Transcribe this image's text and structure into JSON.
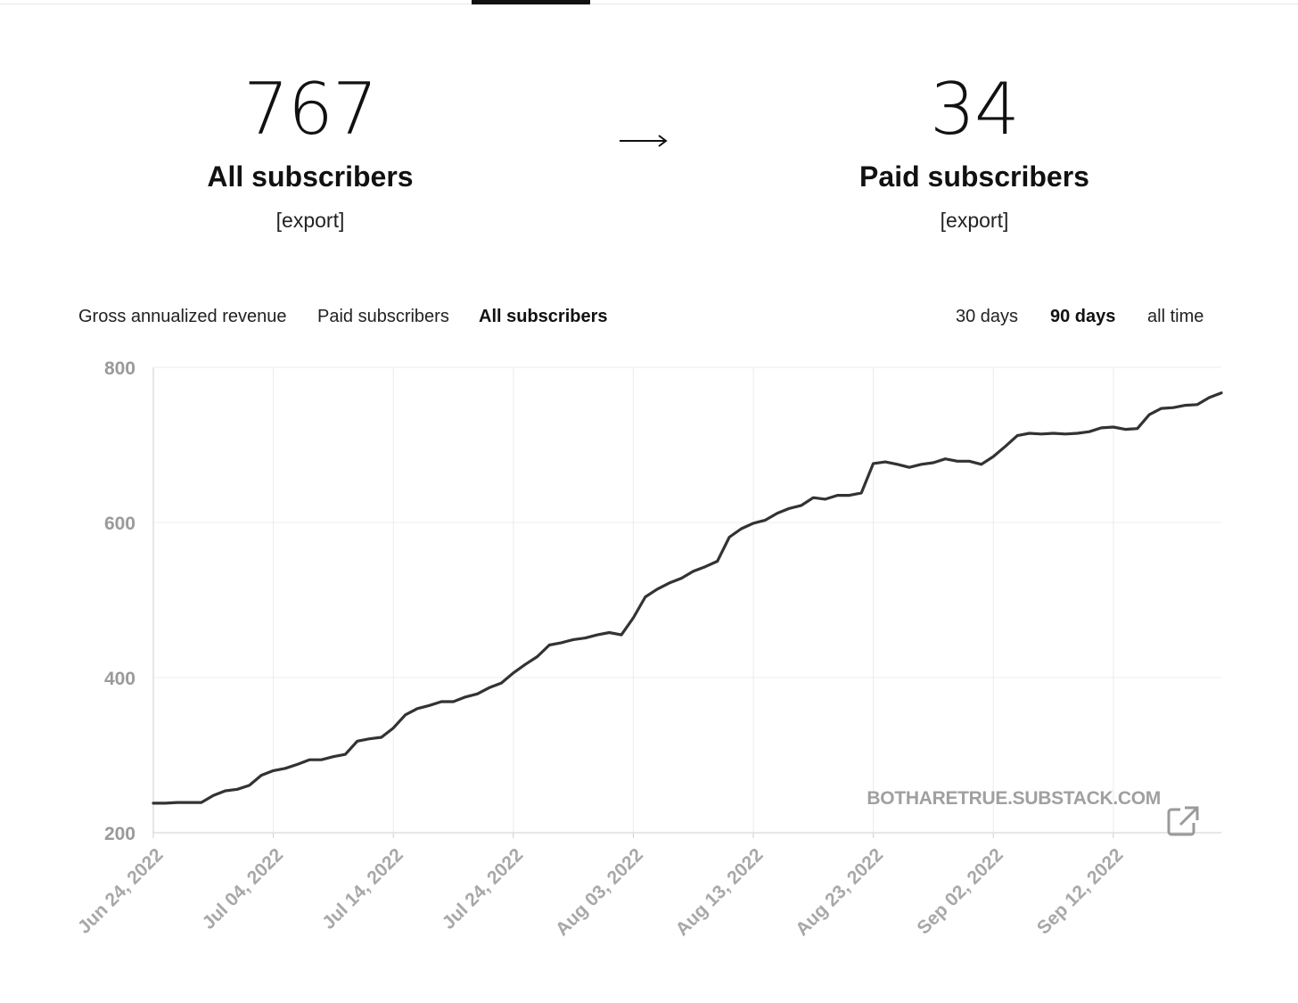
{
  "stats": {
    "all": {
      "value": "767",
      "label": "All subscribers",
      "export": "[export]"
    },
    "paid": {
      "value": "34",
      "label": "Paid subscribers",
      "export": "[export]"
    },
    "arrow_icon": "right-arrow-icon"
  },
  "metric_tabs": [
    {
      "label": "Gross annualized revenue",
      "active": false
    },
    {
      "label": "Paid subscribers",
      "active": false
    },
    {
      "label": "All subscribers",
      "active": true
    }
  ],
  "range_tabs": [
    {
      "label": "30 days",
      "active": false
    },
    {
      "label": "90 days",
      "active": true
    },
    {
      "label": "all time",
      "active": false
    }
  ],
  "chart_data": {
    "type": "line",
    "title": "",
    "xlabel": "",
    "ylabel": "",
    "ylim": [
      200,
      800
    ],
    "yticks": [
      200,
      400,
      600,
      800
    ],
    "xlim": [
      "2022-06-24",
      "2022-09-21"
    ],
    "xticks": [
      {
        "date": "2022-06-24",
        "label": "Jun 24, 2022"
      },
      {
        "date": "2022-07-04",
        "label": "Jul 04, 2022"
      },
      {
        "date": "2022-07-14",
        "label": "Jul 14, 2022"
      },
      {
        "date": "2022-07-24",
        "label": "Jul 24, 2022"
      },
      {
        "date": "2022-08-03",
        "label": "Aug 03, 2022"
      },
      {
        "date": "2022-08-13",
        "label": "Aug 13, 2022"
      },
      {
        "date": "2022-08-23",
        "label": "Aug 23, 2022"
      },
      {
        "date": "2022-09-02",
        "label": "Sep 02, 2022"
      },
      {
        "date": "2022-09-12",
        "label": "Sep 12, 2022"
      }
    ],
    "grid": true,
    "line_color": "#333333",
    "watermark": "BOTHARETRUE.SUBSTACK.COM",
    "external_link_icon": "external-link-icon",
    "series": [
      {
        "name": "",
        "points": [
          [
            "2022-06-24",
            238
          ],
          [
            "2022-06-25",
            238
          ],
          [
            "2022-06-26",
            239
          ],
          [
            "2022-06-27",
            239
          ],
          [
            "2022-06-28",
            239
          ],
          [
            "2022-06-29",
            248
          ],
          [
            "2022-06-30",
            254
          ],
          [
            "2022-07-01",
            256
          ],
          [
            "2022-07-02",
            261
          ],
          [
            "2022-07-03",
            274
          ],
          [
            "2022-07-04",
            280
          ],
          [
            "2022-07-05",
            283
          ],
          [
            "2022-07-06",
            288
          ],
          [
            "2022-07-07",
            294
          ],
          [
            "2022-07-08",
            294
          ],
          [
            "2022-07-09",
            298
          ],
          [
            "2022-07-10",
            301
          ],
          [
            "2022-07-11",
            318
          ],
          [
            "2022-07-12",
            321
          ],
          [
            "2022-07-13",
            323
          ],
          [
            "2022-07-14",
            335
          ],
          [
            "2022-07-15",
            352
          ],
          [
            "2022-07-16",
            360
          ],
          [
            "2022-07-17",
            364
          ],
          [
            "2022-07-18",
            369
          ],
          [
            "2022-07-19",
            369
          ],
          [
            "2022-07-20",
            375
          ],
          [
            "2022-07-21",
            379
          ],
          [
            "2022-07-22",
            387
          ],
          [
            "2022-07-23",
            393
          ],
          [
            "2022-07-24",
            406
          ],
          [
            "2022-07-25",
            417
          ],
          [
            "2022-07-26",
            427
          ],
          [
            "2022-07-27",
            442
          ],
          [
            "2022-07-28",
            445
          ],
          [
            "2022-07-29",
            449
          ],
          [
            "2022-07-30",
            451
          ],
          [
            "2022-07-31",
            455
          ],
          [
            "2022-08-01",
            458
          ],
          [
            "2022-08-02",
            455
          ],
          [
            "2022-08-03",
            477
          ],
          [
            "2022-08-04",
            504
          ],
          [
            "2022-08-05",
            514
          ],
          [
            "2022-08-06",
            522
          ],
          [
            "2022-08-07",
            528
          ],
          [
            "2022-08-08",
            537
          ],
          [
            "2022-08-09",
            543
          ],
          [
            "2022-08-10",
            550
          ],
          [
            "2022-08-11",
            581
          ],
          [
            "2022-08-12",
            592
          ],
          [
            "2022-08-13",
            599
          ],
          [
            "2022-08-14",
            603
          ],
          [
            "2022-08-15",
            612
          ],
          [
            "2022-08-16",
            618
          ],
          [
            "2022-08-17",
            622
          ],
          [
            "2022-08-18",
            632
          ],
          [
            "2022-08-19",
            630
          ],
          [
            "2022-08-20",
            635
          ],
          [
            "2022-08-21",
            635
          ],
          [
            "2022-08-22",
            638
          ],
          [
            "2022-08-23",
            676
          ],
          [
            "2022-08-24",
            678
          ],
          [
            "2022-08-25",
            675
          ],
          [
            "2022-08-26",
            671
          ],
          [
            "2022-08-27",
            675
          ],
          [
            "2022-08-28",
            677
          ],
          [
            "2022-08-29",
            682
          ],
          [
            "2022-08-30",
            679
          ],
          [
            "2022-08-31",
            679
          ],
          [
            "2022-09-01",
            675
          ],
          [
            "2022-09-02",
            685
          ],
          [
            "2022-09-03",
            698
          ],
          [
            "2022-09-04",
            712
          ],
          [
            "2022-09-05",
            715
          ],
          [
            "2022-09-06",
            714
          ],
          [
            "2022-09-07",
            715
          ],
          [
            "2022-09-08",
            714
          ],
          [
            "2022-09-09",
            715
          ],
          [
            "2022-09-10",
            717
          ],
          [
            "2022-09-11",
            722
          ],
          [
            "2022-09-12",
            723
          ],
          [
            "2022-09-13",
            720
          ],
          [
            "2022-09-14",
            721
          ],
          [
            "2022-09-15",
            739
          ],
          [
            "2022-09-16",
            747
          ],
          [
            "2022-09-17",
            748
          ],
          [
            "2022-09-18",
            751
          ],
          [
            "2022-09-19",
            752
          ],
          [
            "2022-09-20",
            761
          ],
          [
            "2022-09-21",
            767
          ]
        ]
      }
    ]
  }
}
